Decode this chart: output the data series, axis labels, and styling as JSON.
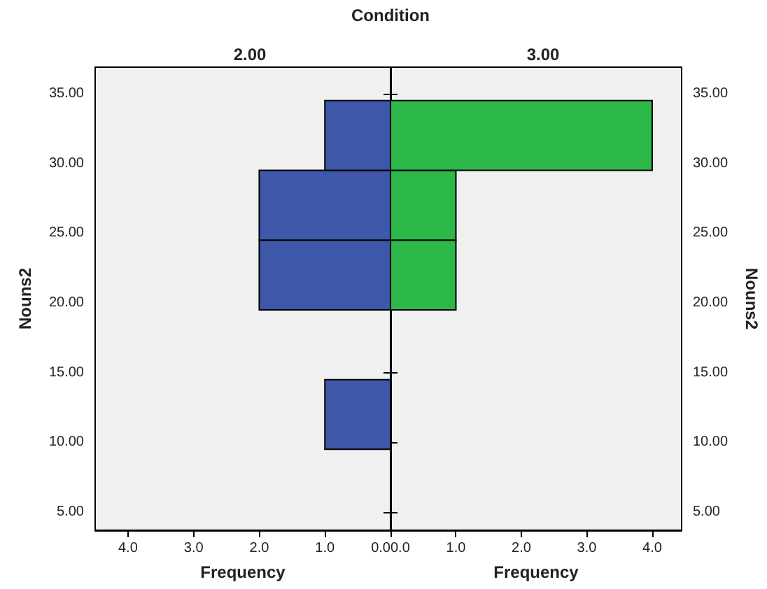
{
  "chart_data": [
    {
      "type": "histogram",
      "orientation": "horizontal",
      "title": "2.00",
      "annotations": [
        "Condition"
      ],
      "xlabel": "Frequency",
      "ylabel": "Nouns2",
      "color": "#3f57a8",
      "grid": false,
      "bins": [
        9.5,
        14.5,
        19.5,
        24.5,
        29.5,
        34.5
      ],
      "values": [
        1,
        0,
        2,
        2,
        1
      ],
      "xlim": [
        4.5,
        0
      ],
      "xticks": [
        {
          "value": 4,
          "label": "4.0"
        },
        {
          "value": 3,
          "label": "3.0"
        },
        {
          "value": 2,
          "label": "2.0"
        },
        {
          "value": 1,
          "label": "1.0"
        },
        {
          "value": 0,
          "label": "0.0"
        }
      ],
      "ylim": [
        3.7,
        36.9
      ],
      "yticks": [
        {
          "value": 5,
          "label": "5.00"
        },
        {
          "value": 10,
          "label": "10.00"
        },
        {
          "value": 15,
          "label": "15.00"
        },
        {
          "value": 20,
          "label": "20.00"
        },
        {
          "value": 25,
          "label": "25.00"
        },
        {
          "value": 30,
          "label": "30.00"
        },
        {
          "value": 35,
          "label": "35.00"
        }
      ]
    },
    {
      "type": "histogram",
      "orientation": "horizontal",
      "title": "3.00",
      "xlabel": "Frequency",
      "ylabel": "Nouns2",
      "color": "#2db84a",
      "grid": false,
      "bins": [
        9.5,
        14.5,
        19.5,
        24.5,
        29.5,
        34.5
      ],
      "values": [
        0,
        0,
        1,
        1,
        4
      ],
      "xlim": [
        0,
        4.45
      ],
      "xticks": [
        {
          "value": 0,
          "label": "0.0"
        },
        {
          "value": 1,
          "label": "1.0"
        },
        {
          "value": 2,
          "label": "2.0"
        },
        {
          "value": 3,
          "label": "3.0"
        },
        {
          "value": 4,
          "label": "4.0"
        }
      ],
      "ylim": [
        3.7,
        36.9
      ],
      "yticks": [
        {
          "value": 5,
          "label": "5.00"
        },
        {
          "value": 10,
          "label": "10.00"
        },
        {
          "value": 15,
          "label": "15.00"
        },
        {
          "value": 20,
          "label": "20.00"
        },
        {
          "value": 25,
          "label": "25.00"
        },
        {
          "value": 30,
          "label": "30.00"
        },
        {
          "value": 35,
          "label": "35.00"
        }
      ]
    }
  ]
}
